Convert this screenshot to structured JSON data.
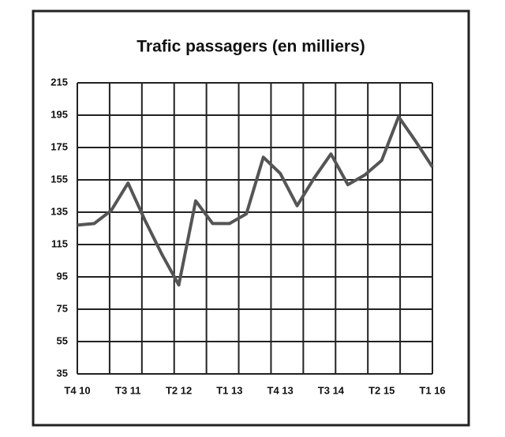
{
  "chart_data": {
    "type": "line",
    "title": "Trafic passagers (en milliers)",
    "categories": [
      "T4 10",
      null,
      null,
      "T3 11",
      null,
      null,
      "T2 12",
      null,
      null,
      "T1 13",
      null,
      null,
      "T4 13",
      null,
      null,
      "T3 14",
      null,
      null,
      "T2 15",
      null,
      null,
      "T1 16"
    ],
    "values": [
      127,
      128,
      136,
      153,
      130,
      109,
      90,
      142,
      128,
      128,
      134,
      169,
      159,
      139,
      156,
      171,
      152,
      158,
      167,
      194,
      179,
      163
    ],
    "color": "#555555",
    "ylim": [
      35,
      215
    ],
    "yticks": [
      35,
      55,
      75,
      95,
      115,
      135,
      155,
      175,
      195,
      215
    ],
    "grid": true
  }
}
